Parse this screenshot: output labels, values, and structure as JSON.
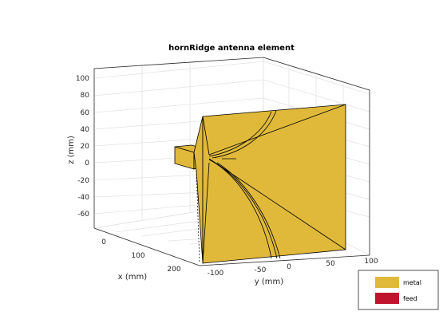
{
  "title": "hornRidge antenna element",
  "axes": {
    "xlabel": "x (mm)",
    "ylabel": "y (mm)",
    "zlabel": "z (mm)",
    "z_ticks": [
      "100",
      "80",
      "60",
      "40",
      "20",
      "0",
      "-20",
      "-40",
      "-60"
    ],
    "x_ticks": [
      "0",
      "100",
      "200"
    ],
    "y_ticks": [
      "-100",
      "-50",
      "0",
      "50",
      "100"
    ]
  },
  "legend": {
    "items": [
      {
        "label": "metal",
        "color": "#e0b93a"
      },
      {
        "label": "feed",
        "color": "#c0142e"
      }
    ]
  },
  "colors": {
    "metal": "#e0b93a",
    "feed": "#c0142e"
  }
}
